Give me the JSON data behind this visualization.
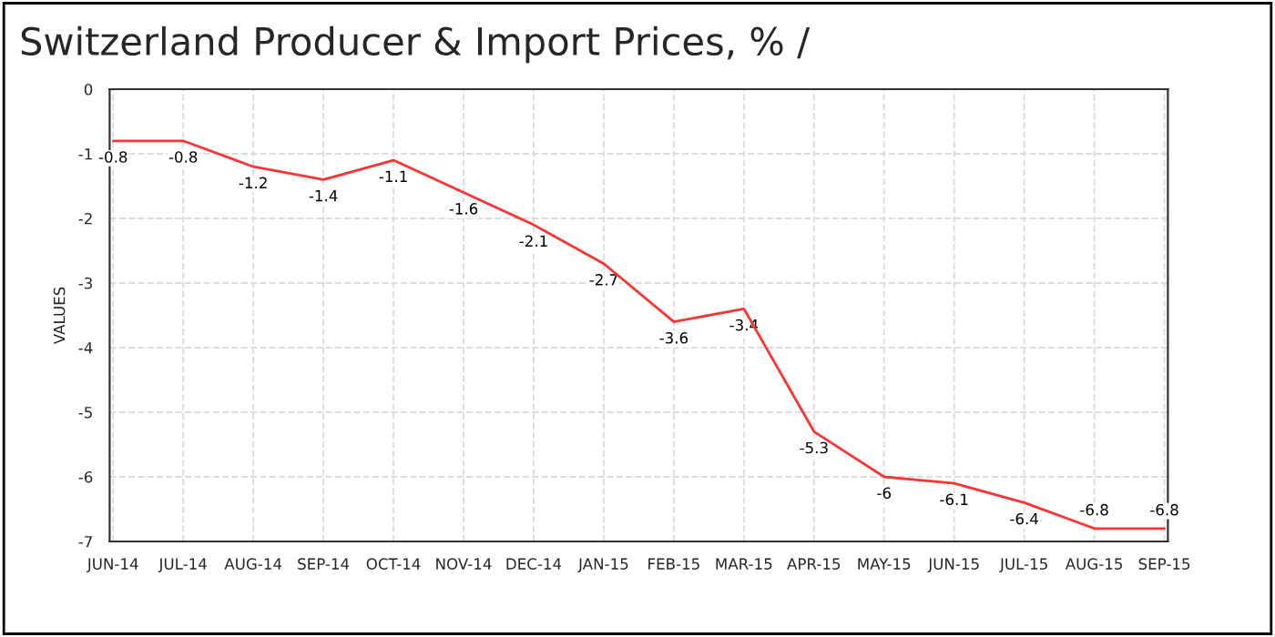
{
  "chart_data": {
    "type": "line",
    "title": "Switzerland Producer & Import Prices, % /",
    "ylabel": "VALUES",
    "categories": [
      "JUN-14",
      "JUL-14",
      "AUG-14",
      "SEP-14",
      "OCT-14",
      "NOV-14",
      "DEC-14",
      "JAN-15",
      "FEB-15",
      "MAR-15",
      "APR-15",
      "MAY-15",
      "JUN-15",
      "JUL-15",
      "AUG-15",
      "SEP-15"
    ],
    "series": [
      {
        "color": "#ff3333",
        "values": [
          -0.8,
          -0.8,
          -1.2,
          -1.4,
          -1.1,
          -1.6,
          -2.1,
          -2.7,
          -3.6,
          -3.4,
          -5.3,
          -6,
          -6.1,
          -6.4,
          -6.8,
          -6.8
        ],
        "value_labels": [
          "-0.8",
          "-0.8",
          "-1.2",
          "-1.4",
          "-1.1",
          "-1.6",
          "-2.1",
          "-2.7",
          "-3.6",
          "-3.4",
          "-5.3",
          "-6",
          "-6.1",
          "-6.4",
          "-6.8",
          "-6.8"
        ]
      }
    ],
    "ylim": [
      -7,
      0
    ],
    "yticks": [
      0,
      -1,
      -2,
      -3,
      -4,
      -5,
      -6,
      -7
    ],
    "grid": true,
    "marker": "none",
    "line_style": "solid"
  }
}
